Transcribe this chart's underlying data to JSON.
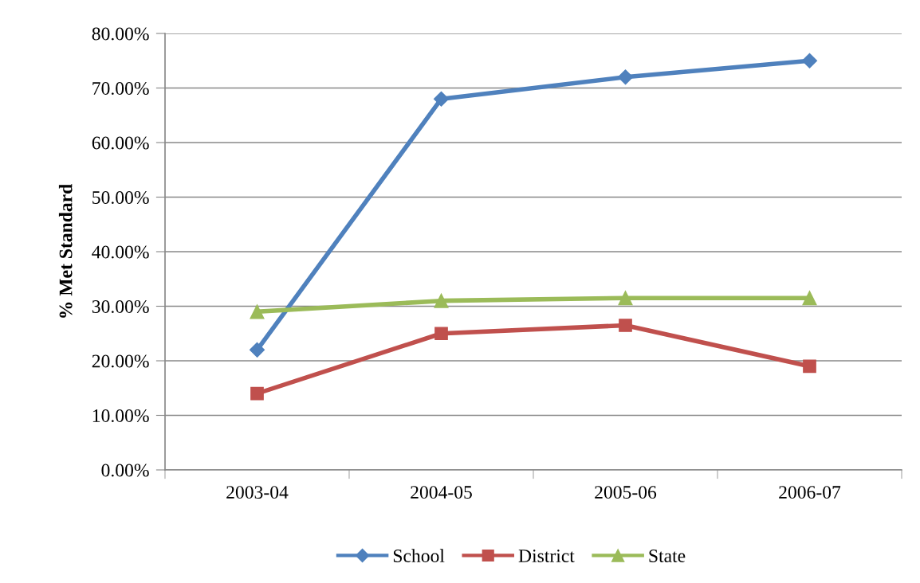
{
  "chart_data": {
    "type": "line",
    "ylabel": "% Met Standard",
    "categories": [
      "2003-04",
      "2004-05",
      "2005-06",
      "2006-07"
    ],
    "series": [
      {
        "name": "School",
        "color": "#4f81bd",
        "marker": "diamond",
        "values": [
          22,
          68,
          72,
          75
        ]
      },
      {
        "name": "District",
        "color": "#c0504d",
        "marker": "square",
        "values": [
          14,
          25,
          26.5,
          19
        ]
      },
      {
        "name": "State",
        "color": "#9bbb59",
        "marker": "triangle",
        "values": [
          29,
          31,
          31.5,
          31.5
        ]
      }
    ],
    "ylim": [
      0,
      80
    ],
    "yticks": [
      {
        "value": 0,
        "label": "0.00%"
      },
      {
        "value": 10,
        "label": "10.00%"
      },
      {
        "value": 20,
        "label": "20.00%"
      },
      {
        "value": 30,
        "label": "30.00%"
      },
      {
        "value": 40,
        "label": "40.00%"
      },
      {
        "value": 50,
        "label": "50.00%"
      },
      {
        "value": 60,
        "label": "60.00%"
      },
      {
        "value": 70,
        "label": "70.00%"
      },
      {
        "value": 80,
        "label": "80.00%"
      }
    ],
    "grid": "y",
    "legend": "bottom",
    "line_style": "solid"
  }
}
